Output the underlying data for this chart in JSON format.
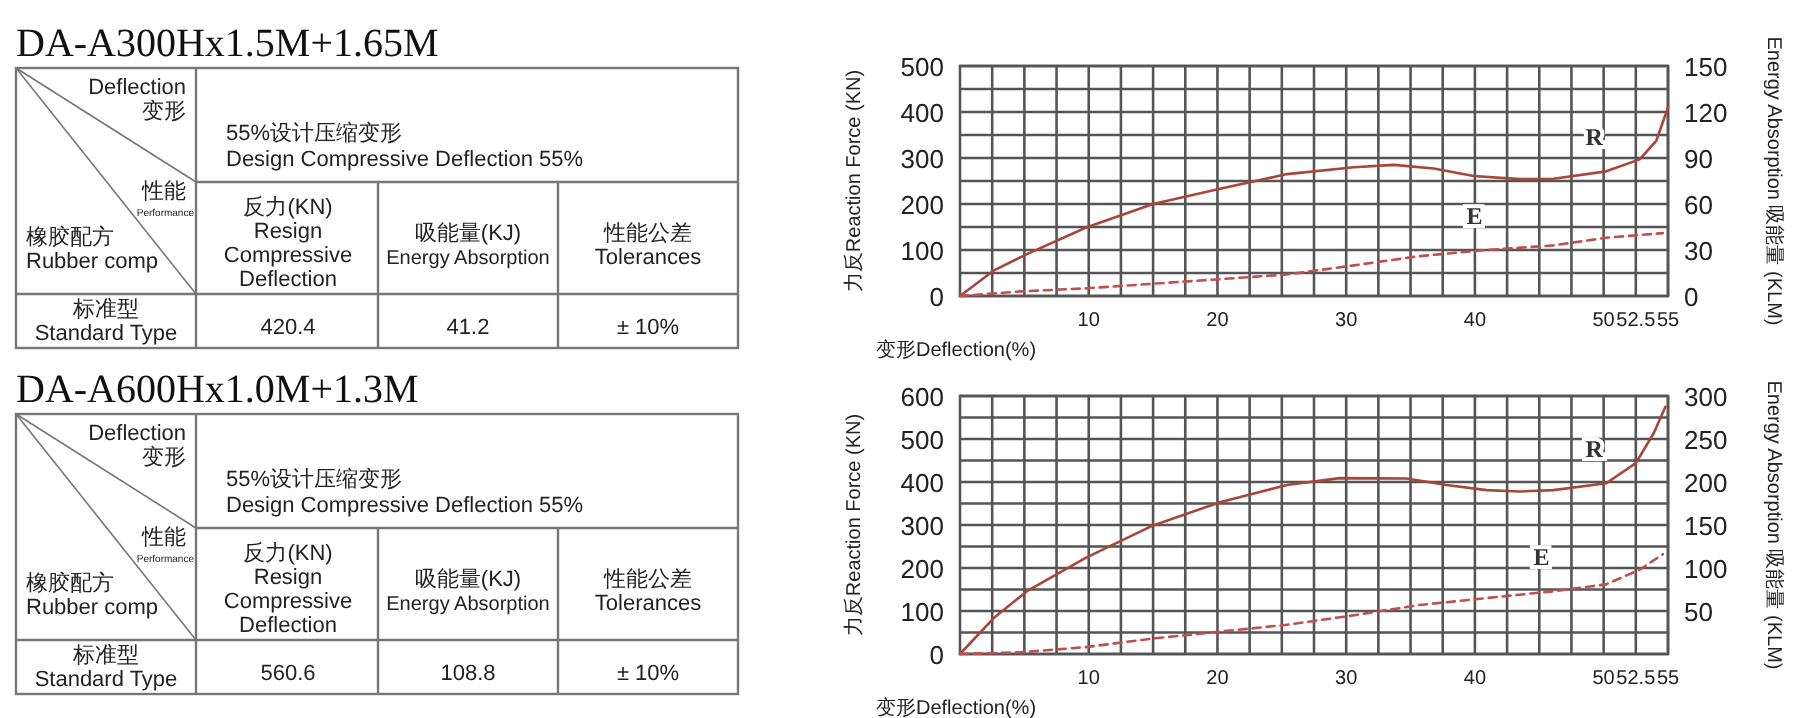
{
  "chart_data": [
    {
      "type": "other",
      "title": "DA-A300Hx1.5M+1.65M",
      "annotations": [
        "Deflection",
        "变形",
        "55%设计压缩变形",
        "Design Compressive Deflection 55%",
        "性能",
        "Performance",
        "橡胶配方",
        "Rubber comp",
        "反力(KN)",
        "Resign",
        "Compressive",
        "Deflection",
        "吸能量(KJ)",
        "Energy Absorption",
        "性能公差",
        "Tolerances",
        "标准型",
        "Standard Type",
        "420.4",
        "41.2",
        "± 10%"
      ]
    },
    {
      "type": "line",
      "xlabel": "变形Deflection(%)",
      "ylabel": "力反Reaction Force (KN)",
      "y2label": "Energy Absorption 吸能量 (KLM)",
      "grid": true,
      "xlim": [
        0,
        55
      ],
      "ylim": [
        0,
        500
      ],
      "y2lim": [
        0,
        150
      ],
      "xticks": [
        {
          "value": 2.5,
          "label": null
        },
        {
          "value": 5,
          "label": null
        },
        {
          "value": 7.5,
          "label": null
        },
        10,
        {
          "value": 12.5,
          "label": null
        },
        {
          "value": 15,
          "label": null
        },
        {
          "value": 17.5,
          "label": null
        },
        20,
        {
          "value": 22.5,
          "label": null
        },
        {
          "value": 25,
          "label": null
        },
        {
          "value": 27.5,
          "label": null
        },
        30,
        {
          "value": 32.5,
          "label": null
        },
        {
          "value": 35,
          "label": null
        },
        {
          "value": 37.5,
          "label": null
        },
        40,
        {
          "value": 42.5,
          "label": null
        },
        {
          "value": 45,
          "label": null
        },
        {
          "value": 47.5,
          "label": null
        },
        50,
        52.5,
        55
      ],
      "yticks": [
        0,
        {
          "value": 50,
          "label": null
        },
        100,
        {
          "value": 150,
          "label": null
        },
        200,
        {
          "value": 250,
          "label": null
        },
        300,
        {
          "value": 350,
          "label": null
        },
        400,
        {
          "value": 450,
          "label": null
        },
        500
      ],
      "y2ticks": [
        0,
        30,
        60,
        90,
        120,
        150
      ],
      "series": [
        {
          "name": "R",
          "color": "#a8463c",
          "line_style": "solid",
          "x": [
            0,
            2.6,
            5.2,
            9.8,
            15,
            20.2,
            25.4,
            30.6,
            33.7,
            36.8,
            39.9,
            43.5,
            46.1,
            50.2,
            52.8,
            54.1,
            55
          ],
          "values": [
            0,
            55,
            91,
            149,
            200,
            233,
            265,
            280,
            285,
            277,
            261,
            254,
            255,
            271,
            297,
            338,
            410
          ]
        },
        {
          "name": "E",
          "color": "#c0504d",
          "line_style": "dashed",
          "axis": "y2",
          "x": [
            0,
            4.7,
            9.8,
            15,
            20.2,
            25.4,
            30.6,
            35.7,
            40.9,
            46.1,
            50.2,
            54.6
          ],
          "values": [
            0,
            3,
            5,
            8,
            11,
            14,
            20,
            26,
            30,
            33,
            38,
            41
          ]
        }
      ]
    },
    {
      "type": "other",
      "title": "DA-A600Hx1.0M+1.3M",
      "annotations": [
        "Deflection",
        "变形",
        "55%设计压缩变形",
        "Design Compressive Deflection 55%",
        "性能",
        "Performance",
        "橡胶配方",
        "Rubber comp",
        "反力(KN)",
        "Resign",
        "Compressive",
        "Deflection",
        "吸能量(KJ)",
        "Energy Absorption",
        "性能公差",
        "Tolerances",
        "标准型",
        "Standard Type",
        "560.6",
        "108.8",
        "± 10%"
      ]
    },
    {
      "type": "line",
      "xlabel": "变形Deflection(%)",
      "ylabel": "力反Reaction Force (KN)",
      "y2label": "Energy Absorption 吸能量 (KLM)",
      "grid": true,
      "xlim": [
        0,
        55
      ],
      "ylim": [
        0,
        600
      ],
      "y2lim": [
        0,
        300
      ],
      "xticks": [
        {
          "value": 2.5,
          "label": null
        },
        {
          "value": 5,
          "label": null
        },
        {
          "value": 7.5,
          "label": null
        },
        10,
        {
          "value": 12.5,
          "label": null
        },
        {
          "value": 15,
          "label": null
        },
        {
          "value": 17.5,
          "label": null
        },
        20,
        {
          "value": 22.5,
          "label": null
        },
        {
          "value": 25,
          "label": null
        },
        {
          "value": 27.5,
          "label": null
        },
        30,
        {
          "value": 32.5,
          "label": null
        },
        {
          "value": 35,
          "label": null
        },
        {
          "value": 37.5,
          "label": null
        },
        40,
        {
          "value": 42.5,
          "label": null
        },
        {
          "value": 45,
          "label": null
        },
        {
          "value": 47.5,
          "label": null
        },
        50,
        52.5,
        55
      ],
      "yticks": [
        0,
        {
          "value": 50,
          "label": null
        },
        100,
        {
          "value": 150,
          "label": null
        },
        200,
        {
          "value": 250,
          "label": null
        },
        300,
        {
          "value": 350,
          "label": null
        },
        400,
        {
          "value": 450,
          "label": null
        },
        500,
        {
          "value": 550,
          "label": null
        },
        600
      ],
      "y2ticks": [
        50,
        100,
        150,
        200,
        250,
        300
      ],
      "series": [
        {
          "name": "R",
          "color": "#a8463c",
          "line_style": "solid",
          "x": [
            0,
            2.6,
            5.2,
            9.8,
            15,
            20.2,
            25.4,
            29.5,
            34.7,
            37.8,
            40.9,
            43.5,
            46.1,
            50.2,
            52.5,
            53.9,
            54.8
          ],
          "values": [
            0,
            83,
            146,
            224,
            299,
            353,
            393,
            409,
            408,
            393,
            381,
            378,
            381,
            397,
            444,
            514,
            575
          ]
        },
        {
          "name": "E",
          "color": "#c0504d",
          "line_style": "dashed",
          "axis": "y2",
          "x": [
            0,
            4.7,
            9.8,
            15,
            20.2,
            25.4,
            30.6,
            35.7,
            40.9,
            46.1,
            50.2,
            52.8,
            54.6
          ],
          "values": [
            0,
            2,
            8,
            18,
            26,
            34,
            45,
            57,
            65,
            73,
            81,
            98,
            116
          ]
        }
      ]
    }
  ]
}
